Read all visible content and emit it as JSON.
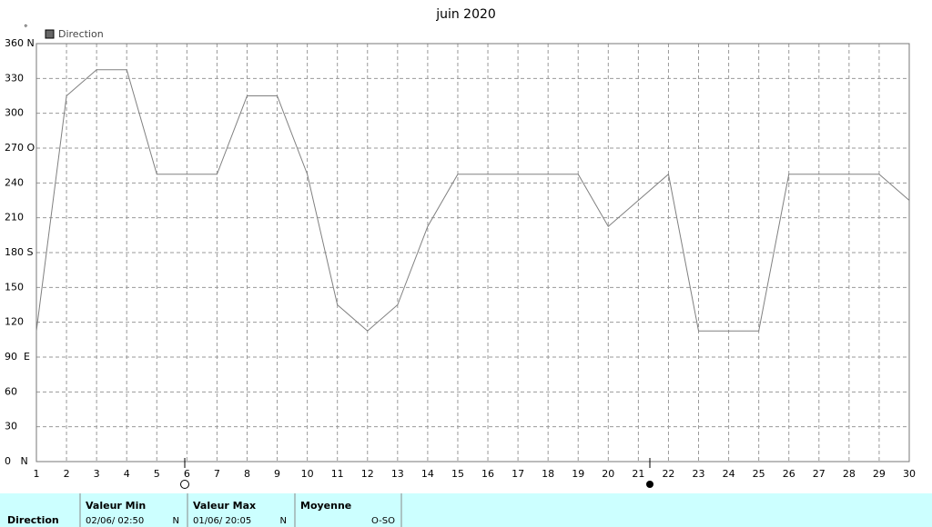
{
  "chart_data": {
    "type": "line",
    "title": "juin 2020",
    "y_label": "°",
    "x": [
      1,
      2,
      3,
      4,
      5,
      6,
      7,
      8,
      9,
      10,
      11,
      12,
      13,
      14,
      15,
      16,
      17,
      18,
      19,
      20,
      21,
      22,
      23,
      24,
      25,
      26,
      27,
      28,
      29,
      30
    ],
    "series": [
      {
        "name": "Direction",
        "color": "#808080",
        "values": [
          112.5,
          315,
          337.5,
          337.5,
          247.5,
          247.5,
          247.5,
          315,
          315,
          247.5,
          135,
          112.5,
          135,
          202.5,
          247.5,
          247.5,
          247.5,
          247.5,
          247.5,
          202.5,
          225,
          247.5,
          112.5,
          112.5,
          112.5,
          247.5,
          247.5,
          247.5,
          247.5,
          225
        ]
      }
    ],
    "xlim": [
      1,
      30
    ],
    "xticks": [
      1,
      2,
      3,
      4,
      5,
      6,
      7,
      8,
      9,
      10,
      11,
      12,
      13,
      14,
      15,
      16,
      17,
      18,
      19,
      20,
      21,
      22,
      23,
      24,
      25,
      26,
      27,
      28,
      29,
      30
    ],
    "ylim": [
      0,
      360
    ],
    "yticks": [
      {
        "value": 0,
        "label": "0   N"
      },
      30,
      60,
      {
        "value": 90,
        "label": "90  E"
      },
      120,
      150,
      {
        "value": 180,
        "label": "180 S"
      },
      210,
      240,
      {
        "value": 270,
        "label": "270 O"
      },
      300,
      330,
      {
        "value": 360,
        "label": "360 N"
      }
    ],
    "grid": true
  },
  "summary": {
    "row_label": "Direction",
    "min": {
      "header": "Valeur Min",
      "date": "02/06/  02:50",
      "dir": "N"
    },
    "max": {
      "header": "Valeur Max",
      "date": "01/06/  20:05",
      "dir": "N"
    },
    "mean": {
      "header": "Moyenne",
      "value": "O-SO"
    }
  }
}
